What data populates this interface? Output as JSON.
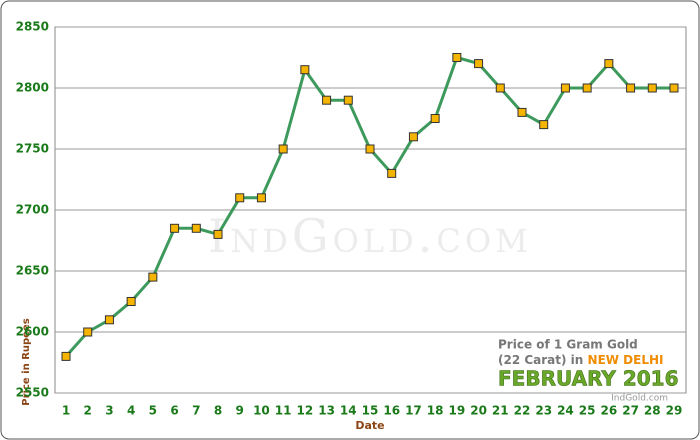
{
  "chart_data": {
    "type": "line",
    "categories": [
      "1",
      "2",
      "3",
      "4",
      "5",
      "6",
      "7",
      "8",
      "9",
      "10",
      "11",
      "12",
      "13",
      "14",
      "15",
      "16",
      "17",
      "18",
      "19",
      "20",
      "21",
      "22",
      "23",
      "24",
      "25",
      "26",
      "27",
      "28",
      "29"
    ],
    "values": [
      2580,
      2600,
      2610,
      2625,
      2645,
      2685,
      2685,
      2680,
      2710,
      2710,
      2750,
      2815,
      2790,
      2790,
      2750,
      2730,
      2760,
      2775,
      2825,
      2820,
      2800,
      2780,
      2770,
      2800,
      2800,
      2820,
      2800,
      2800,
      2800
    ],
    "color": "#3d9a5c",
    "marker_color": "#f5b400",
    "ylim": [
      2550,
      2850
    ],
    "yticks": [
      2550,
      2600,
      2650,
      2700,
      2750,
      2800,
      2850
    ],
    "grid": true,
    "x_label": "Date",
    "y_label": "Price in Rupees",
    "watermark": "IndGold.com",
    "caption": {
      "line1": "Price of 1 Gram Gold",
      "line2": "(22 Carat) in",
      "city": "NEW DELHI",
      "period": "FEBRUARY 2016",
      "source": "IndGold.com"
    }
  }
}
